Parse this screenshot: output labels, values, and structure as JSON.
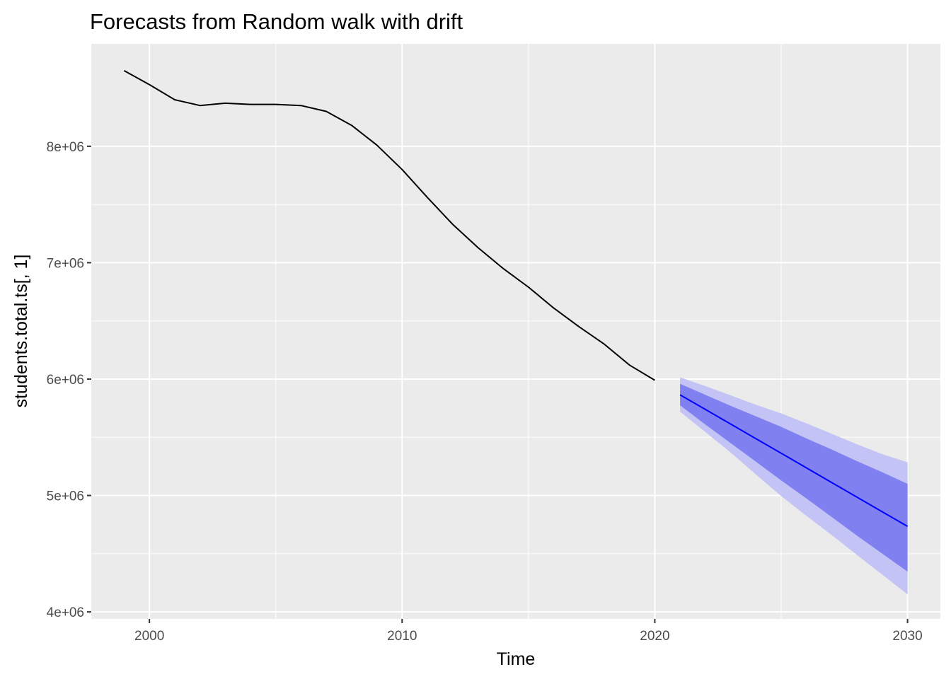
{
  "chart_data": {
    "type": "line",
    "title": "Forecasts from Random walk with drift",
    "xlabel": "Time",
    "ylabel": "students.total.ts[, 1]",
    "xlim": [
      1997.7,
      2031.3
    ],
    "ylim": [
      3940000,
      8880000
    ],
    "x_ticks": [
      2000,
      2010,
      2020,
      2030
    ],
    "x_tick_labels": [
      "2000",
      "2010",
      "2020",
      "2030"
    ],
    "y_ticks": [
      4000000,
      5000000,
      6000000,
      7000000,
      8000000
    ],
    "y_tick_labels": [
      "4e+06",
      "5e+06",
      "6e+06",
      "7e+06",
      "8e+06"
    ],
    "grid": true,
    "legend": "none",
    "colors": {
      "panel": "#ebebeb",
      "grid": "#ffffff",
      "observed": "#000000",
      "forecast": "#0000ff",
      "band80": "#8080f0",
      "band95": "#c3c3f5"
    },
    "series": [
      {
        "kind": "observed",
        "x": [
          1999,
          2000,
          2001,
          2002,
          2003,
          2004,
          2005,
          2006,
          2007,
          2008,
          2009,
          2010,
          2011,
          2012,
          2013,
          2014,
          2015,
          2016,
          2017,
          2018,
          2019,
          2020
        ],
        "values": [
          8650000,
          8530000,
          8400000,
          8350000,
          8370000,
          8360000,
          8360000,
          8350000,
          8300000,
          8180000,
          8010000,
          7800000,
          7560000,
          7330000,
          7130000,
          6950000,
          6790000,
          6610000,
          6450000,
          6300000,
          6120000,
          5990000
        ]
      },
      {
        "kind": "point_forecast",
        "x": [
          2021,
          2022,
          2023,
          2024,
          2025,
          2026,
          2027,
          2028,
          2029,
          2030
        ],
        "values": [
          5865000,
          5739000,
          5614000,
          5488000,
          5363000,
          5237000,
          5111000,
          4986000,
          4860000,
          4735000
        ]
      },
      {
        "kind": "interval_80",
        "x": [
          2021,
          2022,
          2023,
          2024,
          2025,
          2026,
          2027,
          2028,
          2029,
          2030
        ],
        "lower": [
          5775000,
          5610000,
          5450000,
          5290000,
          5130000,
          4975000,
          4815000,
          4655000,
          4500000,
          4345000
        ],
        "upper": [
          5960000,
          5865000,
          5770000,
          5680000,
          5590000,
          5490000,
          5395000,
          5295000,
          5200000,
          5100000
        ]
      },
      {
        "kind": "interval_95",
        "x": [
          2021,
          2022,
          2023,
          2024,
          2025,
          2026,
          2027,
          2028,
          2029,
          2030
        ],
        "lower": [
          5720000,
          5545000,
          5370000,
          5180000,
          4995000,
          4825000,
          4660000,
          4490000,
          4320000,
          4150000
        ],
        "upper": [
          6015000,
          5940000,
          5860000,
          5780000,
          5705000,
          5620000,
          5530000,
          5440000,
          5355000,
          5285000
        ]
      }
    ]
  }
}
